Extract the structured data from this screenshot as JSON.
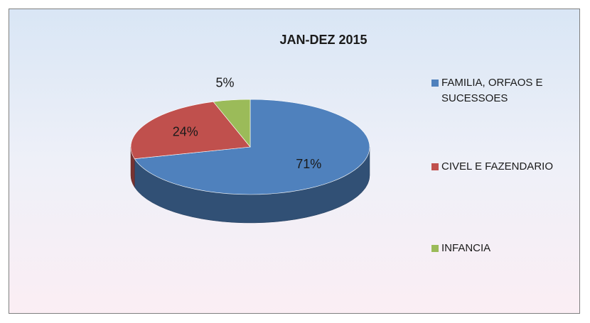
{
  "chart_data": {
    "type": "pie",
    "title": "JAN-DEZ 2015",
    "categories": [
      "FAMILIA, ORFAOS E SUCESSOES",
      "CIVEL E FAZENDARIO",
      "INFANCIA"
    ],
    "values": [
      71,
      24,
      5
    ],
    "value_labels": [
      "71%",
      "24%",
      "5%"
    ],
    "colors": [
      "#4f81bd",
      "#c0504d",
      "#9bbb59"
    ],
    "legend": "right"
  }
}
